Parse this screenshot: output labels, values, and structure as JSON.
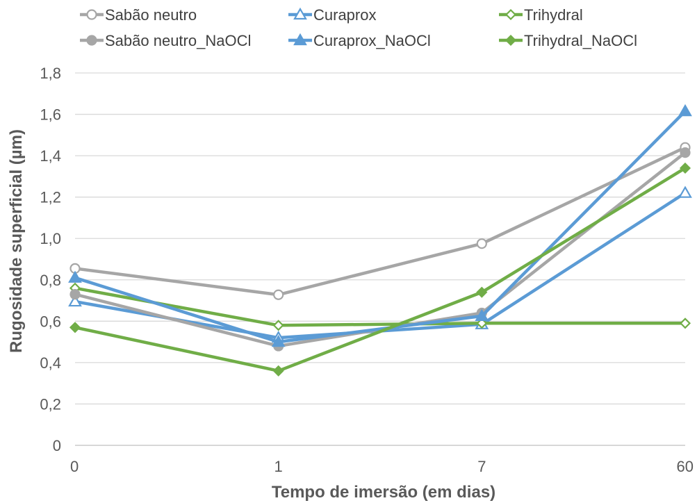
{
  "chart_data": {
    "type": "line",
    "x": [
      "0",
      "1",
      "7",
      "60"
    ],
    "xlabel": "Tempo de imersão (em dias)",
    "ylabel": "Rugosidade superficial (µm)",
    "ylim": [
      0,
      1.8
    ],
    "yticks": [
      "0",
      "0,2",
      "0,4",
      "0,6",
      "0,8",
      "1,0",
      "1,2",
      "1,4",
      "1,6",
      "1,8"
    ],
    "grid": "horizontal",
    "legend_position": "top",
    "series": [
      {
        "name": "Sabão neutro",
        "values": [
          0.855,
          0.728,
          0.975,
          1.44
        ],
        "color": "#a6a6a6",
        "marker": "circle-open"
      },
      {
        "name": "Curaprox",
        "values": [
          0.695,
          0.52,
          0.585,
          1.22
        ],
        "color": "#5b9bd5",
        "marker": "triangle-open"
      },
      {
        "name": "Trihydral",
        "values": [
          0.76,
          0.58,
          0.59,
          0.59
        ],
        "color": "#70ad47",
        "marker": "diamond-open"
      },
      {
        "name": "Sabão neutro_NaOCl",
        "values": [
          0.73,
          0.48,
          0.64,
          1.415
        ],
        "color": "#a6a6a6",
        "marker": "circle-filled"
      },
      {
        "name": "Curaprox_NaOCl",
        "values": [
          0.81,
          0.5,
          0.625,
          1.615
        ],
        "color": "#5b9bd5",
        "marker": "triangle-filled"
      },
      {
        "name": "Trihydral_NaOCl",
        "values": [
          0.57,
          0.36,
          0.74,
          1.34
        ],
        "color": "#70ad47",
        "marker": "diamond-filled"
      }
    ]
  }
}
